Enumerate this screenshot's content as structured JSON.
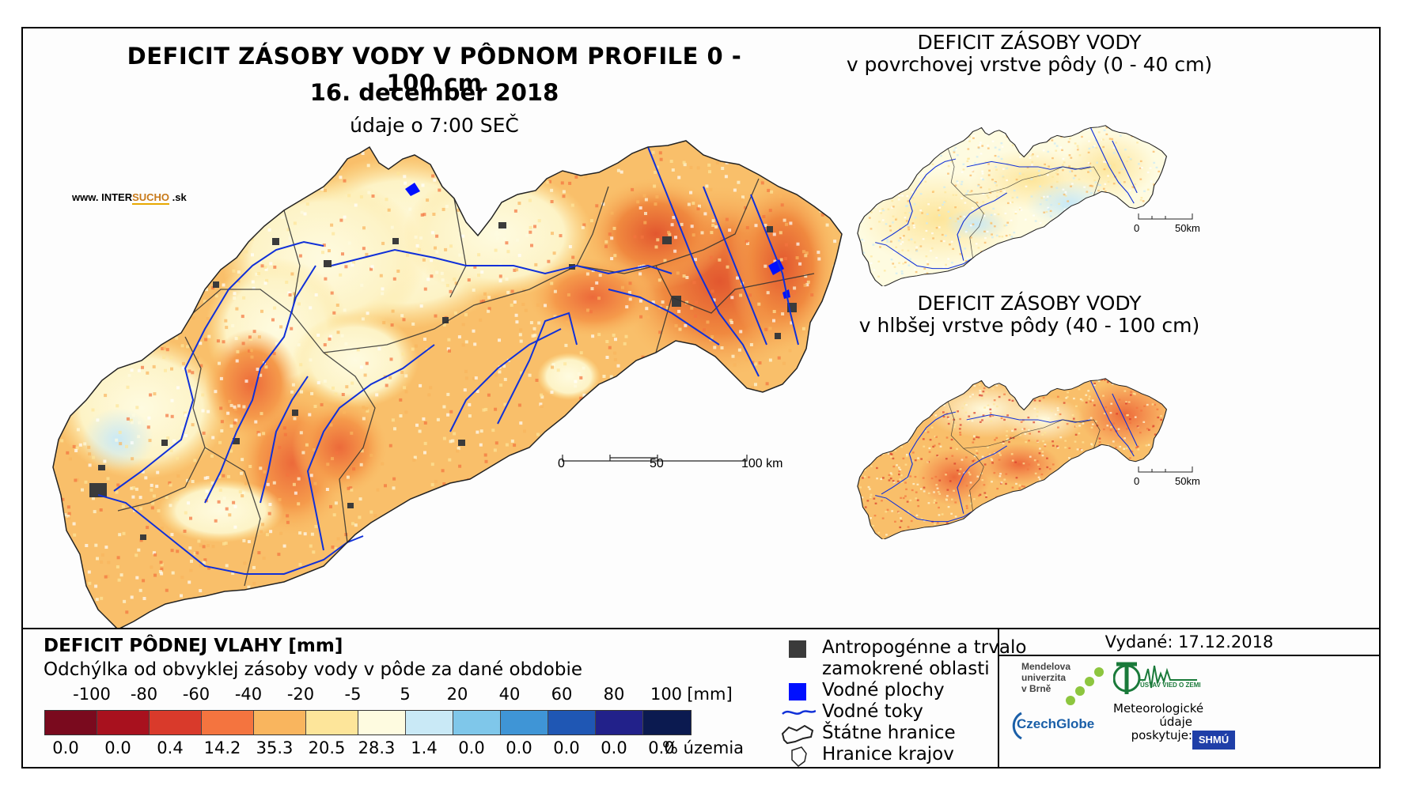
{
  "main_map": {
    "title": "DEFICIT ZÁSOBY VODY V PÔDNOM PROFILE 0 - 100 cm",
    "date": "16. december 2018",
    "time": "údaje o 7:00 SEČ",
    "website_prefix": "www. INTER",
    "website_highlight": "SUCHO",
    "website_suffix": " .sk",
    "scale": {
      "ticks": [
        "0",
        "50",
        "100 km"
      ]
    }
  },
  "inset_top": {
    "title_line1": "DEFICIT ZÁSOBY VODY",
    "title_line2": "v povrchovej vrstve pôdy (0 - 40 cm)",
    "scale": {
      "ticks": [
        "0",
        "50km"
      ]
    }
  },
  "inset_bottom": {
    "title_line1": "DEFICIT ZÁSOBY VODY",
    "title_line2": "v hlbšej vrstve pôdy (40 - 100 cm)",
    "scale": {
      "ticks": [
        "0",
        "50km"
      ]
    }
  },
  "legend": {
    "title": "DEFICIT PÔDNEJ VLAHY [mm]",
    "subtitle": "Odchýlka od obvyklej zásoby vody v pôde za dané obdobie",
    "tick_labels": [
      "-100",
      "-80",
      "-60",
      "-40",
      "-20",
      "-5",
      "5",
      "20",
      "40",
      "60",
      "80",
      "100"
    ],
    "unit": "[mm]",
    "classes": [
      {
        "color": "#7a0a1e",
        "percent": "0.0"
      },
      {
        "color": "#a8111e",
        "percent": "0.0"
      },
      {
        "color": "#d93a2b",
        "percent": "0.4"
      },
      {
        "color": "#f4743f",
        "percent": "14.2"
      },
      {
        "color": "#f9b55e",
        "percent": "35.3"
      },
      {
        "color": "#fde59a",
        "percent": "20.5"
      },
      {
        "color": "#fefbe0",
        "percent": "28.3"
      },
      {
        "color": "#c9e9f6",
        "percent": "1.4"
      },
      {
        "color": "#7fc7ea",
        "percent": "0.0"
      },
      {
        "color": "#3f95d6",
        "percent": "0.0"
      },
      {
        "color": "#1f57b4",
        "percent": "0.0"
      },
      {
        "color": "#22218a",
        "percent": "0.0"
      },
      {
        "color": "#0b1a50",
        "percent": "0.0"
      }
    ],
    "percent_unit": "% územia"
  },
  "symbols": {
    "urban_line1": "Antropogénne a trvalo",
    "urban_line2": "zamokrené oblasti",
    "water_bodies": "Vodné plochy",
    "rivers": "Vodné toky",
    "state_border": "Štátne hranice",
    "region_border": "Hranice krajov",
    "urban_color": "#3b3b3b",
    "water_color": "#0010ff",
    "river_color": "#1030d8"
  },
  "credits": {
    "issued": "Vydané: 17.12.2018",
    "mendel_line1": "Mendelova",
    "mendel_line2": "univerzita",
    "mendel_line3": "v Brně",
    "czechglobe": "CzechGlobe",
    "uvoz": "ÚSTAV VIED O ZEMI",
    "meteo_line1": "Meteorologické",
    "meteo_line2": "údaje",
    "meteo_line3": "poskytuje:",
    "shmu": "SHMÚ"
  }
}
